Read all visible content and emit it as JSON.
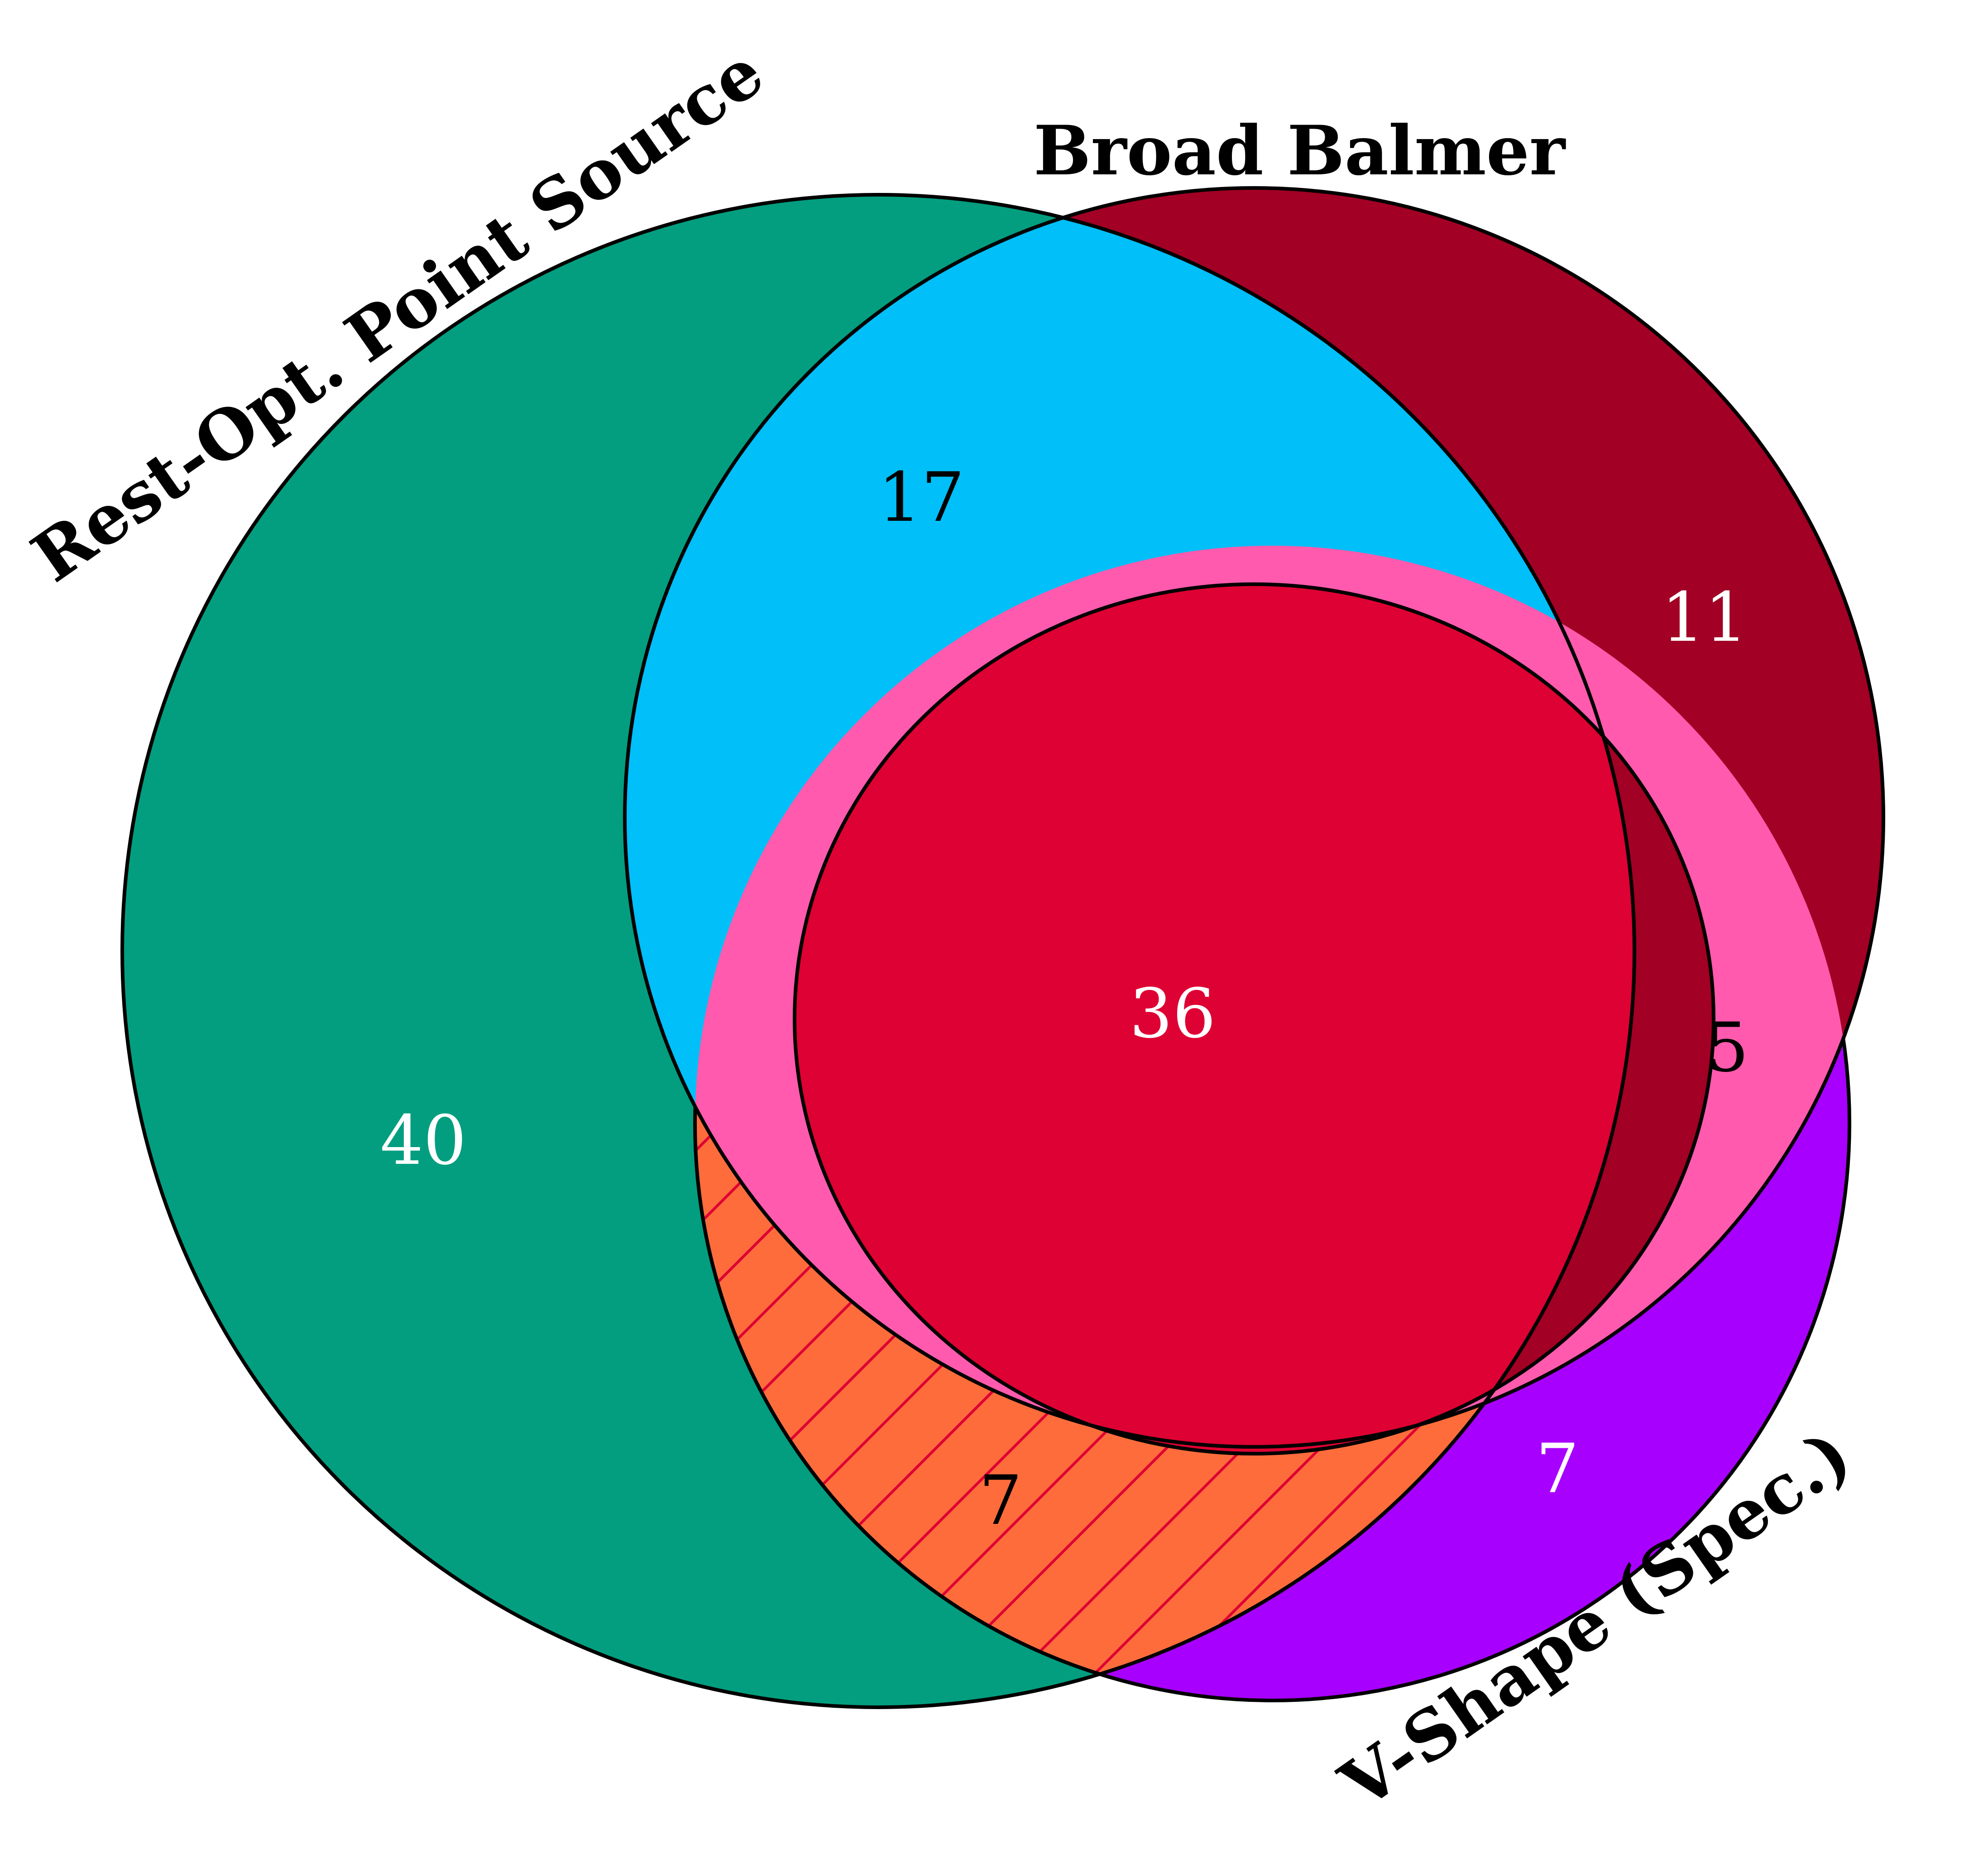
{
  "sets": {
    "point_source": {
      "label": "Rest-Opt. Point Source"
    },
    "broad_balmer": {
      "label": "Broad Balmer"
    },
    "v_shape": {
      "label": "V-Shape (Spec.)"
    }
  },
  "regions": {
    "point_source_only": {
      "count": "40",
      "color": "#029E7F",
      "text_color": "#FFFFFF"
    },
    "point_source_and_balmer": {
      "count": "17",
      "color": "#00BFF9",
      "text_color": "#000000"
    },
    "balmer_only": {
      "count": "11",
      "color": "#A20024",
      "text_color": "#FFFFFF"
    },
    "all_three": {
      "count": "36",
      "color": "#DE0133",
      "text_color": "#FFFFFF"
    },
    "balmer_and_v_shape": {
      "count": "5",
      "color": "#FF5AAE",
      "text_color": "#000000"
    },
    "point_source_and_v_shape": {
      "count": "7",
      "color": "#FF6C3C",
      "hatch_color": "#DE0133",
      "text_color": "#000000"
    },
    "v_shape_only": {
      "count": "7",
      "color": "#A800FF",
      "text_color": "#FFFFFF"
    }
  }
}
